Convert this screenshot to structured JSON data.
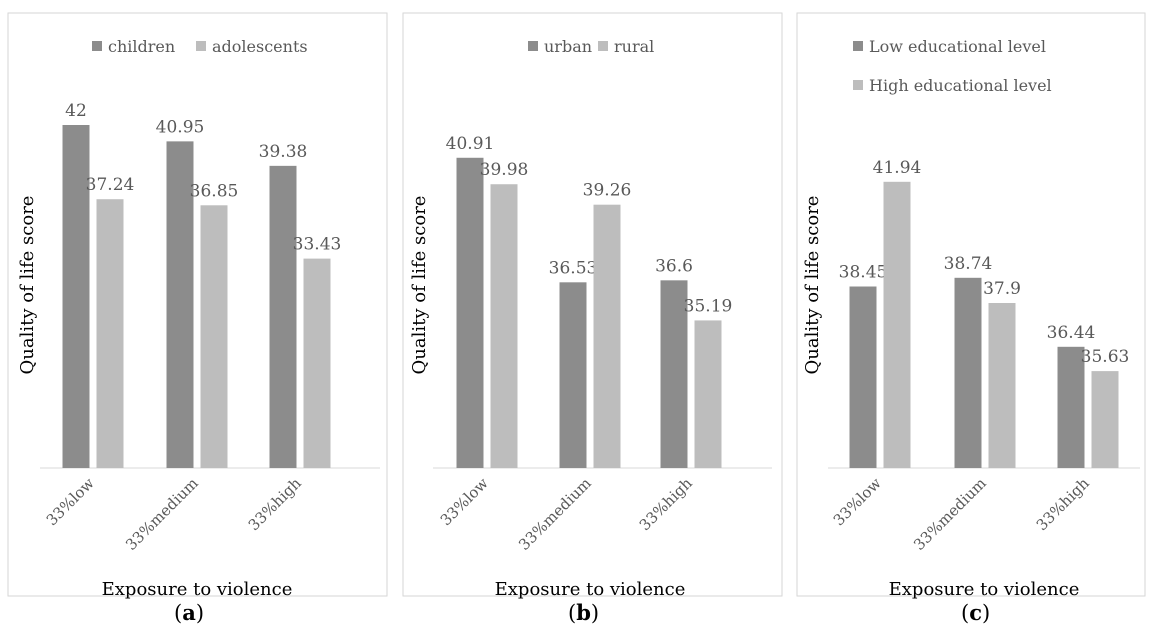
{
  "chart_data": [
    {
      "type": "bar",
      "ylabel": "Quality of life score",
      "xlabel": "Exposure to violence",
      "categories": [
        "33%low",
        "33%medium",
        "33%high"
      ],
      "series": [
        {
          "name": "children",
          "color": "#8c8c8c",
          "values": [
            42,
            40.95,
            39.38
          ]
        },
        {
          "name": "adolescents",
          "color": "#bdbdbd",
          "values": [
            37.24,
            36.85,
            33.43
          ]
        }
      ],
      "ylim": [
        20,
        42
      ],
      "grid": false,
      "legend": "top",
      "panel_label": {
        "open": "(",
        "letter": "a",
        "close": ")"
      }
    },
    {
      "type": "bar",
      "ylabel": "Quality of life score",
      "xlabel": "Exposure to violence",
      "categories": [
        "33%low",
        "33%medium",
        "33%high"
      ],
      "series": [
        {
          "name": "urban",
          "color": "#8c8c8c",
          "values": [
            40.91,
            36.53,
            36.6
          ]
        },
        {
          "name": "rural",
          "color": "#bdbdbd",
          "values": [
            39.98,
            39.26,
            35.19
          ]
        }
      ],
      "ylim": [
        30,
        41.5
      ],
      "grid": false,
      "legend": "top",
      "panel_label": {
        "open": "(",
        "letter": "b",
        "close": ")"
      }
    },
    {
      "type": "bar",
      "ylabel": "Quality of life score",
      "xlabel": "Exposure to violence",
      "categories": [
        "33%low",
        "33%medium",
        "33%high"
      ],
      "series": [
        {
          "name": "Low educational level",
          "color": "#8c8c8c",
          "values": [
            38.45,
            38.74,
            36.44
          ]
        },
        {
          "name": "High educational level",
          "color": "#bdbdbd",
          "values": [
            41.94,
            37.9,
            35.63
          ]
        }
      ],
      "ylim": [
        32.4,
        42.4
      ],
      "grid": false,
      "legend": "top-left stacked",
      "panel_label": {
        "open": "(",
        "letter": "c",
        "close": ")"
      }
    }
  ]
}
